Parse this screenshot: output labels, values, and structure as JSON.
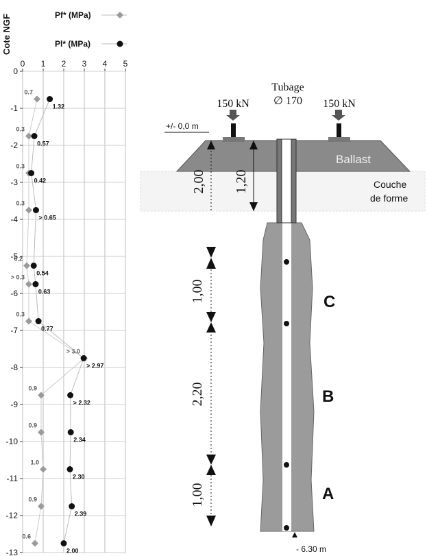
{
  "chart_data": {
    "type": "scatter",
    "y_label": "Cote NGF",
    "xlim": [
      0,
      5
    ],
    "xticks": [
      0,
      1,
      2,
      3,
      4,
      5
    ],
    "ylim": [
      -13,
      0
    ],
    "yticks": [
      0,
      -1,
      -2,
      -3,
      -4,
      -5,
      -6,
      -7,
      -8,
      -9,
      -10,
      -11,
      -12,
      -13
    ],
    "grid": true,
    "legend": "top",
    "series": [
      {
        "name": "Pf* (MPa)",
        "color": "#9a9a9a",
        "marker": "diamond",
        "x": [
          0.7,
          0.3,
          0.3,
          0.3,
          0.2,
          0.3,
          0.3,
          3.0,
          0.9,
          0.9,
          1.0,
          0.9,
          0.6
        ],
        "y": [
          -0.75,
          -1.75,
          -2.75,
          -3.75,
          -5.25,
          -5.75,
          -6.75,
          -7.75,
          -8.75,
          -9.75,
          -10.75,
          -11.75,
          -12.75
        ],
        "value_labels": [
          "0.7",
          "0.3",
          "0.3",
          "0.3",
          "0.2",
          "> 0.3",
          "0.3",
          "> 3.0",
          "0.9",
          "0.9",
          "1.0",
          "0.9",
          "0.6"
        ]
      },
      {
        "name": "Pl* (MPa)",
        "color": "#111111",
        "marker": "circle",
        "x": [
          1.32,
          0.57,
          0.42,
          0.65,
          0.54,
          0.63,
          0.77,
          2.97,
          2.32,
          2.34,
          2.3,
          2.39,
          2.0
        ],
        "y": [
          -0.75,
          -1.75,
          -2.75,
          -3.75,
          -5.25,
          -5.75,
          -6.75,
          -7.75,
          -8.75,
          -9.75,
          -10.75,
          -11.75,
          -12.75
        ],
        "value_labels": [
          "1.32",
          "0.57",
          "0.42",
          "> 0.65",
          "0.54",
          "0.63",
          "0.77",
          "> 2.97",
          "> 2.32",
          "2.34",
          "2.30",
          "2.39",
          "2.00"
        ]
      }
    ]
  },
  "diagram": {
    "casing_title": "Tubage",
    "casing_diameter": "∅ 170",
    "loads": [
      "150 kN",
      "150 kN"
    ],
    "ground_level": "+/- 0,0 m",
    "ballast": "Ballast",
    "subgrade": [
      "Couche",
      "de forme"
    ],
    "dimensions": [
      "2,00",
      "1,20",
      "1,00",
      "2,20",
      "1,00"
    ],
    "zones": [
      "C",
      "B",
      "A"
    ],
    "tip_level": "- 6.30 m"
  }
}
